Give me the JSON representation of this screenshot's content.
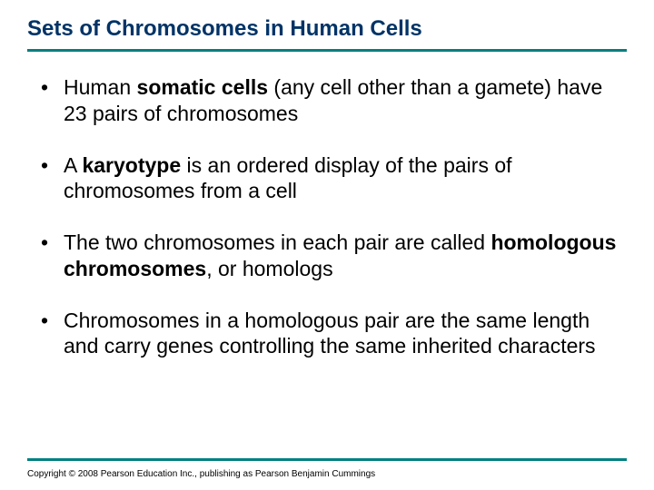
{
  "title": "Sets of Chromosomes in Human Cells",
  "colors": {
    "title_color": "#003366",
    "underline_color": "#008080",
    "text_color": "#000000",
    "background": "#ffffff"
  },
  "typography": {
    "title_fontsize": 24,
    "body_fontsize": 23,
    "copyright_fontsize": 10,
    "font_family": "Arial"
  },
  "bullets": [
    {
      "pre": "Human ",
      "bold": "somatic cells",
      "post": " (any cell other than a gamete) have 23 pairs of chromosomes"
    },
    {
      "pre": "A ",
      "bold": "karyotype",
      "post": " is an ordered display of the pairs of chromosomes from a cell"
    },
    {
      "pre": "The two chromosomes in each pair are called ",
      "bold": "homologous chromosomes",
      "post": ", or homologs"
    },
    {
      "pre": "Chromosomes in a homologous pair are the same length and carry genes controlling the same inherited characters",
      "bold": "",
      "post": ""
    }
  ],
  "copyright": "Copyright © 2008 Pearson Education Inc., publishing as Pearson Benjamin Cummings"
}
